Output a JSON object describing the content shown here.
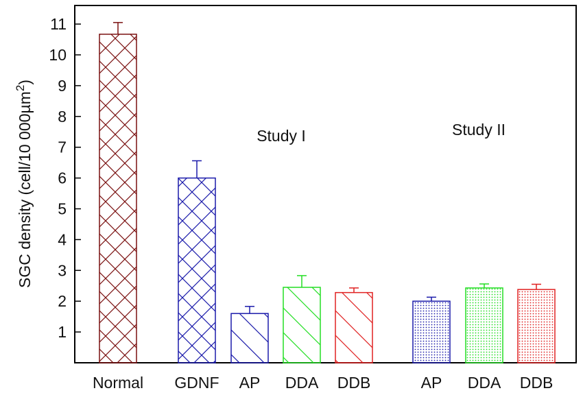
{
  "chart_data": {
    "type": "bar",
    "ylabel_main": "SGC density (cell/10 000µm",
    "ylabel_sup": "2",
    "ylabel_close": ")",
    "xlabel": "",
    "ylim": [
      0,
      12
    ],
    "yticks": [
      1,
      2,
      3,
      4,
      5,
      6,
      7,
      8,
      9,
      10,
      11
    ],
    "grid": false,
    "categories": [
      "Normal",
      "GDNF",
      "AP",
      "DDA",
      "DDB",
      "AP",
      "DDA",
      "DDB"
    ],
    "values": [
      10.67,
      6.0,
      1.6,
      2.45,
      2.28,
      2.0,
      2.43,
      2.38
    ],
    "errors": [
      0.38,
      0.56,
      0.23,
      0.38,
      0.15,
      0.13,
      0.13,
      0.17
    ],
    "colors": [
      "#7a1010",
      "#1a1aaa",
      "#1a1aaa",
      "#22dd22",
      "#e02020",
      "#1a1aaa",
      "#22dd22",
      "#e02020"
    ],
    "patterns": [
      "crosshatch",
      "crosshatch",
      "diagonal",
      "diagonal",
      "diagonal",
      "dots",
      "dots",
      "dots"
    ],
    "groups": [
      {
        "label": "Study I"
      },
      {
        "label": "Study II"
      }
    ]
  }
}
